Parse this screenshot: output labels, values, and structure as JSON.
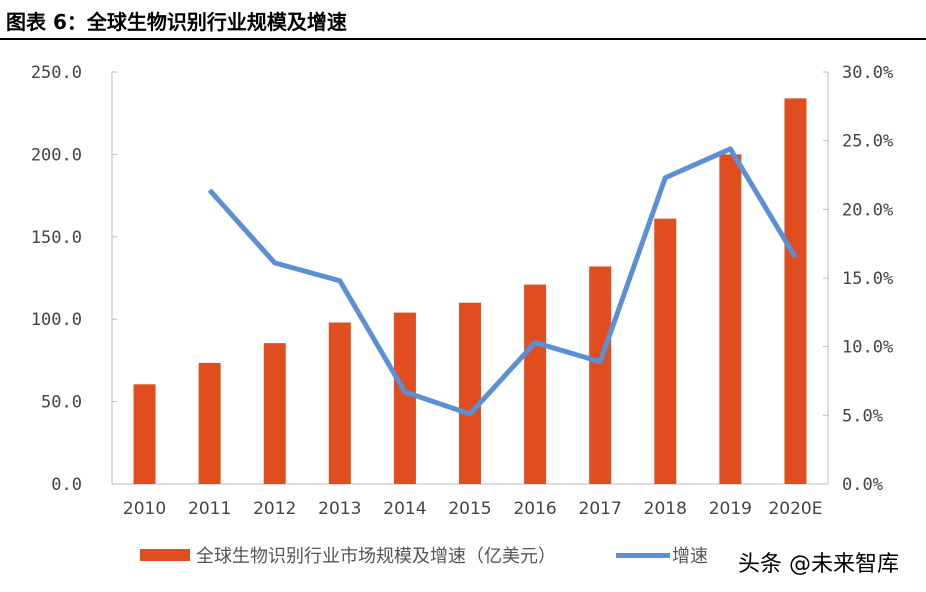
{
  "title": "图表 6：全球生物识别行业规模及增速",
  "watermark": "头条 @未来智库",
  "chart_data": {
    "type": "bar+line",
    "categories": [
      "2010",
      "2011",
      "2012",
      "2013",
      "2014",
      "2015",
      "2016",
      "2017",
      "2018",
      "2019",
      "2020E"
    ],
    "series": [
      {
        "name": "全球生物识别行业市场规模及增速（亿美元）",
        "type": "bar",
        "axis": "left",
        "color": "#E04E1F",
        "values": [
          60.5,
          73.5,
          85.5,
          98,
          104,
          110,
          121,
          132,
          161,
          200,
          234
        ]
      },
      {
        "name": "增速",
        "type": "line",
        "axis": "right",
        "color": "#5B8FD6",
        "values": [
          null,
          21.4,
          16.1,
          14.8,
          6.7,
          5.1,
          10.3,
          8.9,
          22.3,
          24.4,
          16.5
        ]
      }
    ],
    "ylim_left": [
      0,
      250
    ],
    "yticks_left": [
      "0.0",
      "50.0",
      "100.0",
      "150.0",
      "200.0",
      "250.0"
    ],
    "ylim_right": [
      0,
      30
    ],
    "yticks_right": [
      "0.0%",
      "5.0%",
      "10.0%",
      "15.0%",
      "20.0%",
      "25.0%",
      "30.0%"
    ],
    "grid": false,
    "legend": "bottom"
  }
}
